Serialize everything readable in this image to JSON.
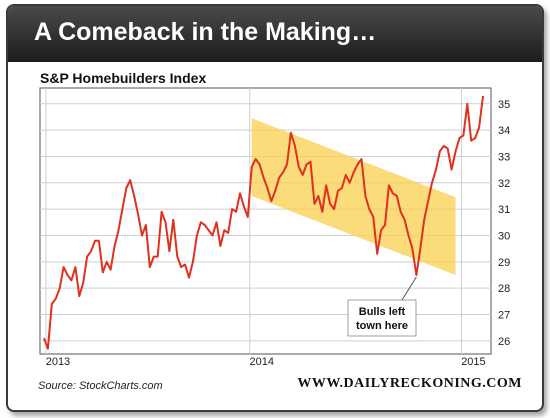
{
  "banner": {
    "title": "A Comeback in the Making…"
  },
  "chart_data": {
    "type": "line",
    "title": "S&P Homebuilders Index",
    "source": "Source: StockCharts.com",
    "site": "WWW.DAILYRECKONING.COM",
    "annotation": "Bulls left town here",
    "annotation_lines": [
      "Bulls left",
      "town here"
    ],
    "x_ticks": [
      "2013",
      "2014",
      "2015"
    ],
    "y_ticks": [
      26,
      27,
      28,
      29,
      30,
      31,
      32,
      33,
      34,
      35
    ],
    "ylim": [
      25.5,
      35.6
    ],
    "grid": true,
    "line_color": "#e0301e",
    "channel_color": "#f9cf4e",
    "series": [
      {
        "values": [
          26.1,
          25.7,
          27.4,
          27.6,
          28.0,
          28.8,
          28.5,
          28.3,
          28.8,
          27.7,
          28.2,
          29.2,
          29.4,
          29.8,
          29.8,
          28.6,
          29.0,
          28.7,
          29.6,
          30.2,
          31.0,
          31.8,
          32.1,
          31.5,
          30.8,
          30.0,
          30.4,
          28.8,
          29.2,
          29.2,
          30.9,
          30.5,
          29.4,
          30.6,
          29.2,
          28.8,
          28.9,
          28.4,
          29.0,
          30.0,
          30.5,
          30.4,
          30.2,
          30.0,
          30.5,
          29.6,
          30.2,
          30.1,
          31.0,
          30.9,
          31.6,
          31.1,
          30.7,
          32.6,
          32.9,
          32.7,
          32.2,
          31.8,
          31.3,
          31.7,
          32.2,
          32.4,
          32.7,
          33.9,
          33.4,
          32.6,
          32.3,
          32.7,
          32.8,
          31.2,
          31.5,
          30.9,
          31.9,
          31.2,
          31.0,
          31.7,
          31.8,
          32.3,
          32.0,
          32.4,
          32.7,
          32.9,
          31.5,
          31.0,
          30.7,
          29.3,
          30.2,
          30.4,
          31.9,
          31.6,
          31.5,
          30.9,
          30.6,
          30.0,
          29.5,
          28.5,
          29.5,
          30.6,
          31.3,
          32.0,
          32.5,
          33.2,
          33.4,
          33.3,
          32.5,
          33.2,
          33.7,
          33.8,
          35.0,
          33.6,
          33.7,
          34.1,
          35.3
        ]
      }
    ]
  }
}
